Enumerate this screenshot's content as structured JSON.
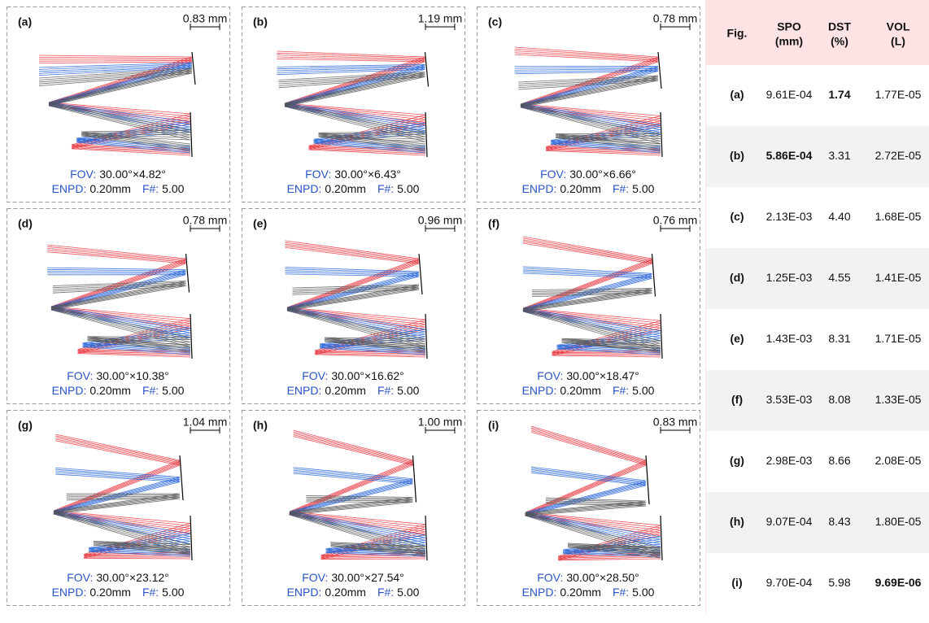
{
  "panels": [
    {
      "label": "(a)",
      "scale": "0.83 mm",
      "fov_label": "FOV:",
      "fov": "30.00°×4.82°",
      "enpd_label": "ENPD:",
      "enpd": "0.20mm",
      "f_label": "F#:",
      "f": "5.00"
    },
    {
      "label": "(b)",
      "scale": "1.19 mm",
      "fov_label": "FOV:",
      "fov": "30.00°×6.43°",
      "enpd_label": "ENPD:",
      "enpd": "0.20mm",
      "f_label": "F#:",
      "f": "5.00"
    },
    {
      "label": "(c)",
      "scale": "0.78 mm",
      "fov_label": "FOV:",
      "fov": "30.00°×6.66°",
      "enpd_label": "ENPD:",
      "enpd": "0.20mm",
      "f_label": "F#:",
      "f": "5.00"
    },
    {
      "label": "(d)",
      "scale": "0.78 mm",
      "fov_label": "FOV:",
      "fov": "30.00°×10.38°",
      "enpd_label": "ENPD:",
      "enpd": "0.20mm",
      "f_label": "F#:",
      "f": "5.00"
    },
    {
      "label": "(e)",
      "scale": "0.96 mm",
      "fov_label": "FOV:",
      "fov": "30.00°×16.62°",
      "enpd_label": "ENPD:",
      "enpd": "0.20mm",
      "f_label": "F#:",
      "f": "5.00"
    },
    {
      "label": "(f)",
      "scale": "0.76 mm",
      "fov_label": "FOV:",
      "fov": "30.00°×18.47°",
      "enpd_label": "ENPD:",
      "enpd": "0.20mm",
      "f_label": "F#:",
      "f": "5.00"
    },
    {
      "label": "(g)",
      "scale": "1.04 mm",
      "fov_label": "FOV:",
      "fov": "30.00°×23.12°",
      "enpd_label": "ENPD:",
      "enpd": "0.20mm",
      "f_label": "F#:",
      "f": "5.00"
    },
    {
      "label": "(h)",
      "scale": "1.00 mm",
      "fov_label": "FOV:",
      "fov": "30.00°×27.54°",
      "enpd_label": "ENPD:",
      "enpd": "0.20mm",
      "f_label": "F#:",
      "f": "5.00"
    },
    {
      "label": "(i)",
      "scale": "0.83 mm",
      "fov_label": "FOV:",
      "fov": "30.00°×28.50°",
      "enpd_label": "ENPD:",
      "enpd": "0.20mm",
      "f_label": "F#:",
      "f": "5.00"
    }
  ],
  "table": {
    "header": [
      [
        "Fig."
      ],
      [
        "SPO",
        "(mm)"
      ],
      [
        "DST",
        "(%)"
      ],
      [
        "VOL",
        "(L)"
      ]
    ],
    "highlight_color": "#f05a6a",
    "rows": [
      {
        "cells": [
          "(a)",
          "9.61E-04",
          "1.74",
          "1.77E-05"
        ],
        "best": [
          2
        ]
      },
      {
        "cells": [
          "(b)",
          "5.86E-04",
          "3.31",
          "2.72E-05"
        ],
        "best": [
          1
        ]
      },
      {
        "cells": [
          "(c)",
          "2.13E-03",
          "4.40",
          "1.68E-05"
        ],
        "best": []
      },
      {
        "cells": [
          "(d)",
          "1.25E-03",
          "4.55",
          "1.41E-05"
        ],
        "best": []
      },
      {
        "cells": [
          "(e)",
          "1.43E-03",
          "8.31",
          "1.71E-05"
        ],
        "best": []
      },
      {
        "cells": [
          "(f)",
          "3.53E-03",
          "8.08",
          "1.33E-05"
        ],
        "best": []
      },
      {
        "cells": [
          "(g)",
          "2.98E-03",
          "8.66",
          "2.08E-05"
        ],
        "best": []
      },
      {
        "cells": [
          "(h)",
          "9.07E-04",
          "8.43",
          "1.80E-05"
        ],
        "best": []
      },
      {
        "cells": [
          "(i)",
          "9.70E-04",
          "5.98",
          "9.69E-06"
        ],
        "best": [
          3
        ]
      }
    ]
  }
}
